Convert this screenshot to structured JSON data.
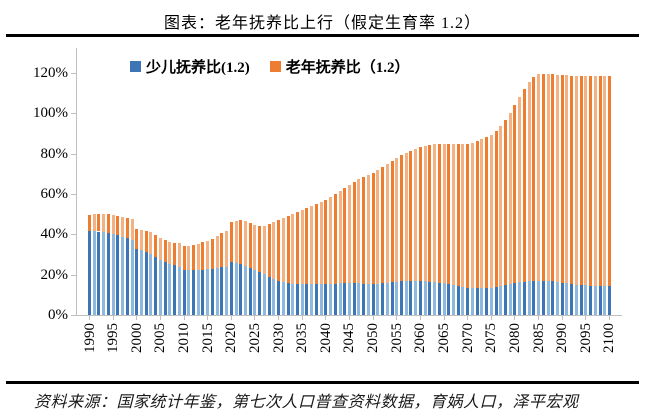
{
  "page": {
    "title": "图表：老年抚养比上行（假定生育率 1.2）",
    "source_note": "资料来源：国家统计年鉴，第七次人口普查资料数据，育娲人口，泽平宏观"
  },
  "colors": {
    "child_main": "#3E76B5",
    "child_light": "#8FB8DF",
    "elderly_main": "#ED7D31",
    "elderly_light": "#F4B183",
    "axis": "#BFBFBF",
    "rule": "#000000"
  },
  "chart_data": {
    "type": "bar",
    "stacked": true,
    "title": "图表：老年抚养比上行（假定生育率 1.2）",
    "unit": "%",
    "ylim": [
      0,
      120
    ],
    "grid": false,
    "legend_position": "top",
    "y_ticks": [
      "0%",
      "20%",
      "40%",
      "60%",
      "80%",
      "100%",
      "120%"
    ],
    "x_start": 1990,
    "x_end": 2100,
    "x_tick_years": [
      1990,
      1995,
      2000,
      2005,
      2010,
      2015,
      2020,
      2025,
      2030,
      2035,
      2040,
      2045,
      2050,
      2055,
      2060,
      2065,
      2070,
      2075,
      2080,
      2085,
      2090,
      2095,
      2100
    ],
    "years": [
      1990,
      1991,
      1992,
      1993,
      1994,
      1995,
      1996,
      1997,
      1998,
      1999,
      2000,
      2001,
      2002,
      2003,
      2004,
      2005,
      2006,
      2007,
      2008,
      2009,
      2010,
      2011,
      2012,
      2013,
      2014,
      2015,
      2016,
      2017,
      2018,
      2019,
      2020,
      2021,
      2022,
      2023,
      2024,
      2025,
      2026,
      2027,
      2028,
      2029,
      2030,
      2031,
      2032,
      2033,
      2034,
      2035,
      2036,
      2037,
      2038,
      2039,
      2040,
      2041,
      2042,
      2043,
      2044,
      2045,
      2046,
      2047,
      2048,
      2049,
      2050,
      2051,
      2052,
      2053,
      2054,
      2055,
      2056,
      2057,
      2058,
      2059,
      2060,
      2061,
      2062,
      2063,
      2064,
      2065,
      2066,
      2067,
      2068,
      2069,
      2070,
      2071,
      2072,
      2073,
      2074,
      2075,
      2076,
      2077,
      2078,
      2079,
      2080,
      2081,
      2082,
      2083,
      2084,
      2085,
      2086,
      2087,
      2088,
      2089,
      2090,
      2091,
      2092,
      2093,
      2094,
      2095,
      2096,
      2097,
      2098,
      2099,
      2100
    ],
    "series": [
      {
        "name": "少儿抚养比(1.2)",
        "values": [
          41.5,
          41.6,
          41.4,
          41.1,
          40.7,
          40.2,
          39.5,
          38.8,
          38.1,
          37.4,
          32.6,
          32.0,
          31.2,
          30.3,
          28.8,
          27.3,
          26.2,
          25.3,
          24.6,
          24.0,
          22.3,
          22.1,
          22.2,
          22.2,
          22.5,
          22.6,
          22.9,
          23.4,
          23.7,
          23.8,
          26.2,
          26.0,
          25.4,
          24.5,
          23.4,
          22.3,
          21.2,
          20.1,
          19.0,
          17.9,
          16.9,
          16.3,
          15.8,
          15.5,
          15.3,
          15.2,
          15.2,
          15.2,
          15.3,
          15.3,
          15.4,
          15.5,
          15.6,
          15.7,
          15.8,
          15.9,
          15.8,
          15.7,
          15.6,
          15.5,
          15.4,
          15.6,
          15.8,
          16.0,
          16.3,
          16.5,
          16.7,
          16.8,
          16.9,
          16.9,
          16.9,
          16.7,
          16.5,
          16.3,
          16.1,
          16.0,
          15.4,
          14.9,
          14.4,
          13.9,
          13.5,
          13.3,
          13.2,
          13.2,
          13.3,
          13.5,
          13.9,
          14.4,
          14.9,
          15.4,
          15.9,
          16.3,
          16.6,
          16.8,
          16.9,
          17.0,
          17.0,
          16.9,
          16.7,
          16.4,
          16.0,
          15.7,
          15.4,
          15.1,
          14.9,
          14.7,
          14.6,
          14.5,
          14.4,
          14.4,
          14.4
        ]
      },
      {
        "name": "老年抚养比（1.2）",
        "values": [
          8.3,
          8.7,
          8.7,
          8.9,
          9.2,
          9.2,
          9.7,
          9.7,
          9.9,
          10.2,
          9.9,
          10.1,
          10.4,
          10.7,
          10.7,
          10.7,
          11.0,
          11.1,
          11.3,
          11.6,
          11.9,
          12.3,
          12.7,
          13.1,
          13.7,
          14.3,
          15.0,
          15.9,
          16.8,
          17.8,
          19.7,
          20.8,
          21.8,
          22.0,
          22.1,
          22.2,
          22.8,
          24.1,
          26.0,
          28.1,
          30.1,
          31.7,
          33.2,
          34.5,
          35.7,
          36.8,
          37.8,
          38.8,
          39.7,
          40.7,
          41.6,
          43.0,
          44.4,
          45.8,
          47.2,
          48.6,
          50.2,
          51.8,
          52.9,
          54.0,
          55.1,
          56.4,
          57.7,
          59.0,
          60.2,
          61.5,
          62.5,
          63.6,
          64.6,
          65.5,
          66.3,
          67.1,
          67.8,
          68.4,
          68.8,
          69.0,
          69.6,
          70.1,
          70.6,
          71.1,
          71.5,
          72.2,
          73.1,
          74.0,
          74.9,
          75.8,
          77.1,
          79.1,
          81.6,
          84.6,
          88.1,
          91.7,
          95.4,
          98.7,
          101.1,
          102.3,
          102.5,
          102.6,
          102.6,
          102.8,
          103.0,
          103.1,
          103.3,
          103.4,
          103.5,
          103.6,
          103.7,
          103.8,
          104.0,
          104.1,
          104.1
        ]
      }
    ]
  }
}
